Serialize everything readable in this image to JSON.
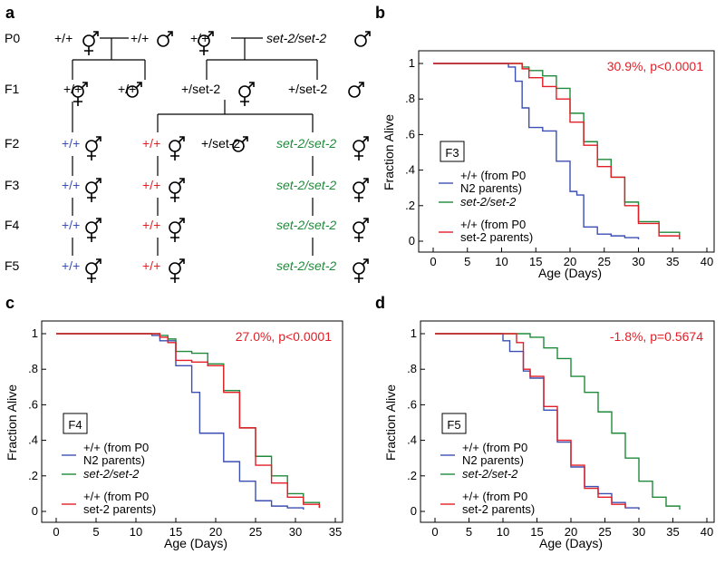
{
  "panel_letters": {
    "a": "a",
    "b": "b",
    "c": "c",
    "d": "d"
  },
  "pedigree": {
    "generations": [
      "P0",
      "F1",
      "F2",
      "F3",
      "F4",
      "F5"
    ],
    "genotypes": {
      "wt": "+/+",
      "het": "+/set-2",
      "mut": "set-2/set-2"
    },
    "colors": {
      "blue": "#3b4fb2",
      "red": "#e21e26",
      "green": "#1f8a3a",
      "black": "#000000"
    }
  },
  "chart_data": [
    {
      "type": "line",
      "panel": "b",
      "generation_box": "F3",
      "stat_text": "30.9%, p<0.0001",
      "xlabel": "Age (Days)",
      "ylabel": "Fraction Alive",
      "xlim": [
        0,
        40
      ],
      "ylim": [
        0,
        1
      ],
      "xticks": [
        "0",
        "5",
        "10",
        "15",
        "20",
        "25",
        "30",
        "35",
        "40"
      ],
      "yticks": [
        "0",
        ".2",
        ".4",
        ".6",
        ".8",
        "1"
      ],
      "legend": [
        {
          "line1": "+/+ (from P0",
          "line2": "N2 parents)",
          "color": "#3b4fb2"
        },
        {
          "line1": "set-2/set-2",
          "line2": "",
          "color": "#1f8a3a"
        },
        {
          "line1": "+/+ (from P0",
          "line2": "set-2 parents)",
          "color": "#e21e26"
        }
      ],
      "series": [
        {
          "name": "+/+ (from P0 N2 parents)",
          "color": "#3b4fb2",
          "x": [
            0,
            10,
            11,
            12,
            13,
            14,
            16,
            18,
            20,
            21,
            22,
            24,
            26,
            28,
            30
          ],
          "y": [
            1,
            1,
            0.98,
            0.9,
            0.75,
            0.64,
            0.62,
            0.45,
            0.28,
            0.26,
            0.08,
            0.04,
            0.03,
            0.02,
            0.01
          ]
        },
        {
          "name": "set-2/set-2",
          "color": "#1f8a3a",
          "x": [
            0,
            12,
            13,
            14,
            16,
            18,
            20,
            22,
            24,
            26,
            28,
            30,
            33,
            36
          ],
          "y": [
            1,
            1,
            0.98,
            0.96,
            0.93,
            0.86,
            0.72,
            0.56,
            0.46,
            0.36,
            0.22,
            0.11,
            0.05,
            0.02
          ]
        },
        {
          "name": "+/+ (from P0 set-2 parents)",
          "color": "#e21e26",
          "x": [
            0,
            12,
            13,
            14,
            16,
            18,
            20,
            22,
            24,
            26,
            28,
            30,
            33,
            36
          ],
          "y": [
            1,
            1,
            0.97,
            0.92,
            0.87,
            0.8,
            0.67,
            0.54,
            0.42,
            0.36,
            0.2,
            0.1,
            0.03,
            0.01
          ]
        }
      ]
    },
    {
      "type": "line",
      "panel": "c",
      "generation_box": "F4",
      "stat_text": "27.0%, p<0.0001",
      "xlabel": "Age (Days)",
      "ylabel": "Fraction Alive",
      "xlim": [
        0,
        35
      ],
      "ylim": [
        0,
        1
      ],
      "xticks": [
        "0",
        "5",
        "10",
        "15",
        "20",
        "25",
        "30",
        "35"
      ],
      "yticks": [
        "0",
        ".2",
        ".4",
        ".6",
        ".8",
        "1"
      ],
      "legend": [
        {
          "line1": "+/+ (from P0",
          "line2": "N2 parents)",
          "color": "#3b4fb2"
        },
        {
          "line1": "set-2/set-2",
          "line2": "",
          "color": "#1f8a3a"
        },
        {
          "line1": "+/+ (from P0",
          "line2": "set-2 parents)",
          "color": "#e21e26"
        }
      ],
      "series": [
        {
          "name": "+/+ (from P0 N2 parents)",
          "color": "#3b4fb2",
          "x": [
            0,
            11,
            12,
            13,
            15,
            17,
            18,
            21,
            23,
            25,
            27,
            29,
            31
          ],
          "y": [
            1,
            1,
            0.99,
            0.96,
            0.82,
            0.67,
            0.44,
            0.28,
            0.17,
            0.06,
            0.03,
            0.02,
            0.01
          ]
        },
        {
          "name": "set-2/set-2",
          "color": "#1f8a3a",
          "x": [
            0,
            12,
            13,
            14,
            15,
            17,
            19,
            21,
            23,
            25,
            27,
            29,
            31,
            33
          ],
          "y": [
            1,
            1,
            0.99,
            0.97,
            0.9,
            0.89,
            0.83,
            0.68,
            0.47,
            0.31,
            0.2,
            0.1,
            0.05,
            0.02
          ]
        },
        {
          "name": "+/+ (from P0 set-2 parents)",
          "color": "#e21e26",
          "x": [
            0,
            12,
            13,
            14,
            15,
            17,
            19,
            21,
            23,
            25,
            27,
            29,
            31,
            33
          ],
          "y": [
            1,
            1,
            0.98,
            0.95,
            0.85,
            0.84,
            0.82,
            0.67,
            0.47,
            0.26,
            0.16,
            0.08,
            0.04,
            0.02
          ]
        }
      ]
    },
    {
      "type": "line",
      "panel": "d",
      "generation_box": "F5",
      "stat_text": "-1.8%, p=0.5674",
      "xlabel": "Age (Days)",
      "ylabel": "Fraction Alive",
      "xlim": [
        0,
        40
      ],
      "ylim": [
        0,
        1
      ],
      "xticks": [
        "0",
        "5",
        "10",
        "15",
        "20",
        "25",
        "30",
        "35",
        "40"
      ],
      "yticks": [
        "0",
        ".2",
        ".4",
        ".6",
        ".8",
        "1"
      ],
      "legend": [
        {
          "line1": "+/+ (from P0",
          "line2": "N2 parents)",
          "color": "#3b4fb2"
        },
        {
          "line1": "set-2/set-2",
          "line2": "",
          "color": "#1f8a3a"
        },
        {
          "line1": "+/+ (from P0",
          "line2": "set-2 parents)",
          "color": "#e21e26"
        }
      ],
      "series": [
        {
          "name": "+/+ (from P0 N2 parents)",
          "color": "#3b4fb2",
          "x": [
            0,
            9,
            10,
            11,
            13,
            14,
            16,
            18,
            20,
            22,
            24,
            26,
            28,
            30
          ],
          "y": [
            1,
            1,
            0.96,
            0.9,
            0.79,
            0.75,
            0.57,
            0.39,
            0.25,
            0.14,
            0.1,
            0.05,
            0.02,
            0.01
          ]
        },
        {
          "name": "set-2/set-2",
          "color": "#1f8a3a",
          "x": [
            0,
            12,
            14,
            16,
            18,
            20,
            22,
            24,
            26,
            28,
            30,
            32,
            34,
            36
          ],
          "y": [
            1,
            1,
            0.98,
            0.92,
            0.86,
            0.76,
            0.67,
            0.56,
            0.44,
            0.3,
            0.17,
            0.08,
            0.03,
            0.01
          ]
        },
        {
          "name": "+/+ (from P0 set-2 parents)",
          "color": "#e21e26",
          "x": [
            0,
            11,
            12,
            13,
            14,
            16,
            18,
            20,
            22,
            24,
            26,
            28
          ],
          "y": [
            1,
            1,
            0.95,
            0.8,
            0.76,
            0.59,
            0.4,
            0.26,
            0.13,
            0.08,
            0.04,
            0.02
          ]
        }
      ]
    }
  ]
}
